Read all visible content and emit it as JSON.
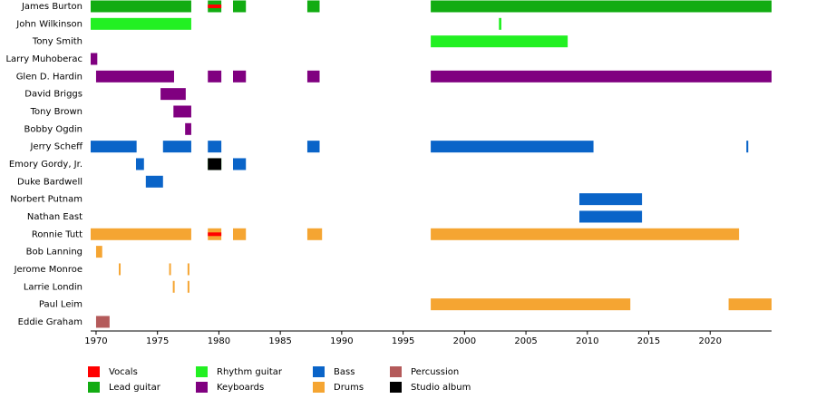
{
  "chart_data": {
    "type": "timeline",
    "categories": [
      "James Burton",
      "John Wilkinson",
      "Tony Smith",
      "Larry Muhoberac",
      "Glen D. Hardin",
      "David Briggs",
      "Tony Brown",
      "Bobby Ogdin",
      "Jerry Scheff",
      "Emory Gordy, Jr.",
      "Duke Bardwell",
      "Norbert Putnam",
      "Nathan East",
      "Ronnie Tutt",
      "Bob Lanning",
      "Jerome Monroe",
      "Larrie Londin",
      "Paul Leim",
      "Eddie Graham"
    ],
    "xlim": [
      1969.56,
      2025
    ],
    "xticks": [
      1970,
      1975,
      1980,
      1985,
      1990,
      1995,
      2000,
      2005,
      2010,
      2015,
      2020
    ],
    "series": [
      {
        "name": "Vocals",
        "color": "#ff0000",
        "periods": [
          {
            "member": "James Burton",
            "start": 1979.1,
            "end": 1980.2
          },
          {
            "member": "Ronnie Tutt",
            "start": 1979.1,
            "end": 1980.2
          }
        ]
      },
      {
        "name": "Lead guitar",
        "color": "#12ac12",
        "periods": [
          {
            "member": "James Burton",
            "start": 1969.56,
            "end": 1977.75
          },
          {
            "member": "James Burton",
            "start": 1979.1,
            "end": 1980.2
          },
          {
            "member": "James Burton",
            "start": 1981.15,
            "end": 1982.2
          },
          {
            "member": "James Burton",
            "start": 1987.2,
            "end": 1988.2
          },
          {
            "member": "James Burton",
            "start": 1997.25,
            "end": 2025
          }
        ]
      },
      {
        "name": "Rhythm guitar",
        "color": "#22f022",
        "periods": [
          {
            "member": "John Wilkinson",
            "start": 1969.56,
            "end": 1977.75
          },
          {
            "member": "John Wilkinson",
            "start": 2002.8,
            "end": 2003.0
          },
          {
            "member": "Tony Smith",
            "start": 1997.25,
            "end": 2008.4
          },
          {
            "member": "Emory Gordy, Jr.",
            "start": 1979.1,
            "end": 1980.2
          }
        ]
      },
      {
        "name": "Keyboards",
        "color": "#800080",
        "periods": [
          {
            "member": "Larry Muhoberac",
            "start": 1969.56,
            "end": 1970.1
          },
          {
            "member": "Glen D. Hardin",
            "start": 1970,
            "end": 1976.35
          },
          {
            "member": "Glen D. Hardin",
            "start": 1979.1,
            "end": 1980.2
          },
          {
            "member": "Glen D. Hardin",
            "start": 1981.15,
            "end": 1982.2
          },
          {
            "member": "Glen D. Hardin",
            "start": 1987.2,
            "end": 1988.2
          },
          {
            "member": "Glen D. Hardin",
            "start": 1997.25,
            "end": 2025
          },
          {
            "member": "David Briggs",
            "start": 1975.25,
            "end": 1977.3
          },
          {
            "member": "Tony Brown",
            "start": 1976.3,
            "end": 1977.75
          },
          {
            "member": "Bobby Ogdin",
            "start": 1977.25,
            "end": 1977.75
          }
        ]
      },
      {
        "name": "Bass",
        "color": "#0a64c8",
        "periods": [
          {
            "member": "Jerry Scheff",
            "start": 1969.56,
            "end": 1973.3
          },
          {
            "member": "Jerry Scheff",
            "start": 1975.45,
            "end": 1977.75
          },
          {
            "member": "Jerry Scheff",
            "start": 1979.1,
            "end": 1980.2
          },
          {
            "member": "Jerry Scheff",
            "start": 1987.2,
            "end": 1988.2
          },
          {
            "member": "Jerry Scheff",
            "start": 1997.25,
            "end": 2010.5
          },
          {
            "member": "Jerry Scheff",
            "start": 2022.95,
            "end": 2023.1
          },
          {
            "member": "Emory Gordy, Jr.",
            "start": 1973.25,
            "end": 1973.9
          },
          {
            "member": "Emory Gordy, Jr.",
            "start": 1981.15,
            "end": 1982.2
          },
          {
            "member": "Duke Bardwell",
            "start": 1974.05,
            "end": 1975.45
          },
          {
            "member": "Norbert Putnam",
            "start": 2009.35,
            "end": 2014.45
          },
          {
            "member": "Nathan East",
            "start": 2009.35,
            "end": 2014.45
          }
        ]
      },
      {
        "name": "Drums",
        "color": "#f5a532",
        "periods": [
          {
            "member": "Ronnie Tutt",
            "start": 1969.56,
            "end": 1977.75
          },
          {
            "member": "Ronnie Tutt",
            "start": 1979.1,
            "end": 1980.2
          },
          {
            "member": "Ronnie Tutt",
            "start": 1981.15,
            "end": 1982.2
          },
          {
            "member": "Ronnie Tutt",
            "start": 1987.2,
            "end": 1988.4
          },
          {
            "member": "Ronnie Tutt",
            "start": 1997.25,
            "end": 2022.35
          },
          {
            "member": "Bob Lanning",
            "start": 1970,
            "end": 1970.5
          },
          {
            "member": "Jerome Monroe",
            "start": 1971.85,
            "end": 1971.95
          },
          {
            "member": "Jerome Monroe",
            "start": 1975.95,
            "end": 1976.05
          },
          {
            "member": "Jerome Monroe",
            "start": 1977.45,
            "end": 1977.55
          },
          {
            "member": "Larrie Londin",
            "start": 1976.25,
            "end": 1976.35
          },
          {
            "member": "Larrie Londin",
            "start": 1977.45,
            "end": 1977.55
          },
          {
            "member": "Paul Leim",
            "start": 1997.25,
            "end": 2013.5
          },
          {
            "member": "Paul Leim",
            "start": 2021.5,
            "end": 2025
          }
        ]
      },
      {
        "name": "Percussion",
        "color": "#b45a5a",
        "periods": [
          {
            "member": "Eddie Graham",
            "start": 1970,
            "end": 1971.1
          }
        ]
      },
      {
        "name": "Studio album",
        "color": "#000000",
        "periods": [
          {
            "member": "Emory Gordy, Jr.",
            "start": 1979.1,
            "end": 1980.2
          }
        ]
      }
    ]
  }
}
